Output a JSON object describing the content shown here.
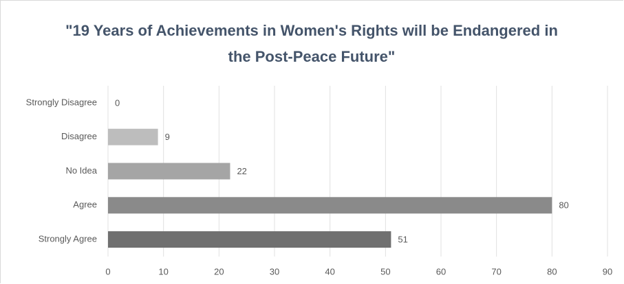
{
  "chart_data": {
    "type": "hbar",
    "title": "\"19 Years of Achievements in Women's Rights will be Endangered in the Post-Peace Future\"",
    "categories": [
      "Strongly Disagree",
      "Disagree",
      "No Idea",
      "Agree",
      "Strongly Agree"
    ],
    "values": [
      0,
      9,
      22,
      80,
      51
    ],
    "colors": [
      "#d0d0d0",
      "#bdbdbd",
      "#a5a5a5",
      "#8a8a8a",
      "#707070"
    ],
    "xlim": [
      0,
      90
    ],
    "xticks": [
      0,
      10,
      20,
      30,
      40,
      50,
      60,
      70,
      80,
      90
    ],
    "grid": true
  }
}
